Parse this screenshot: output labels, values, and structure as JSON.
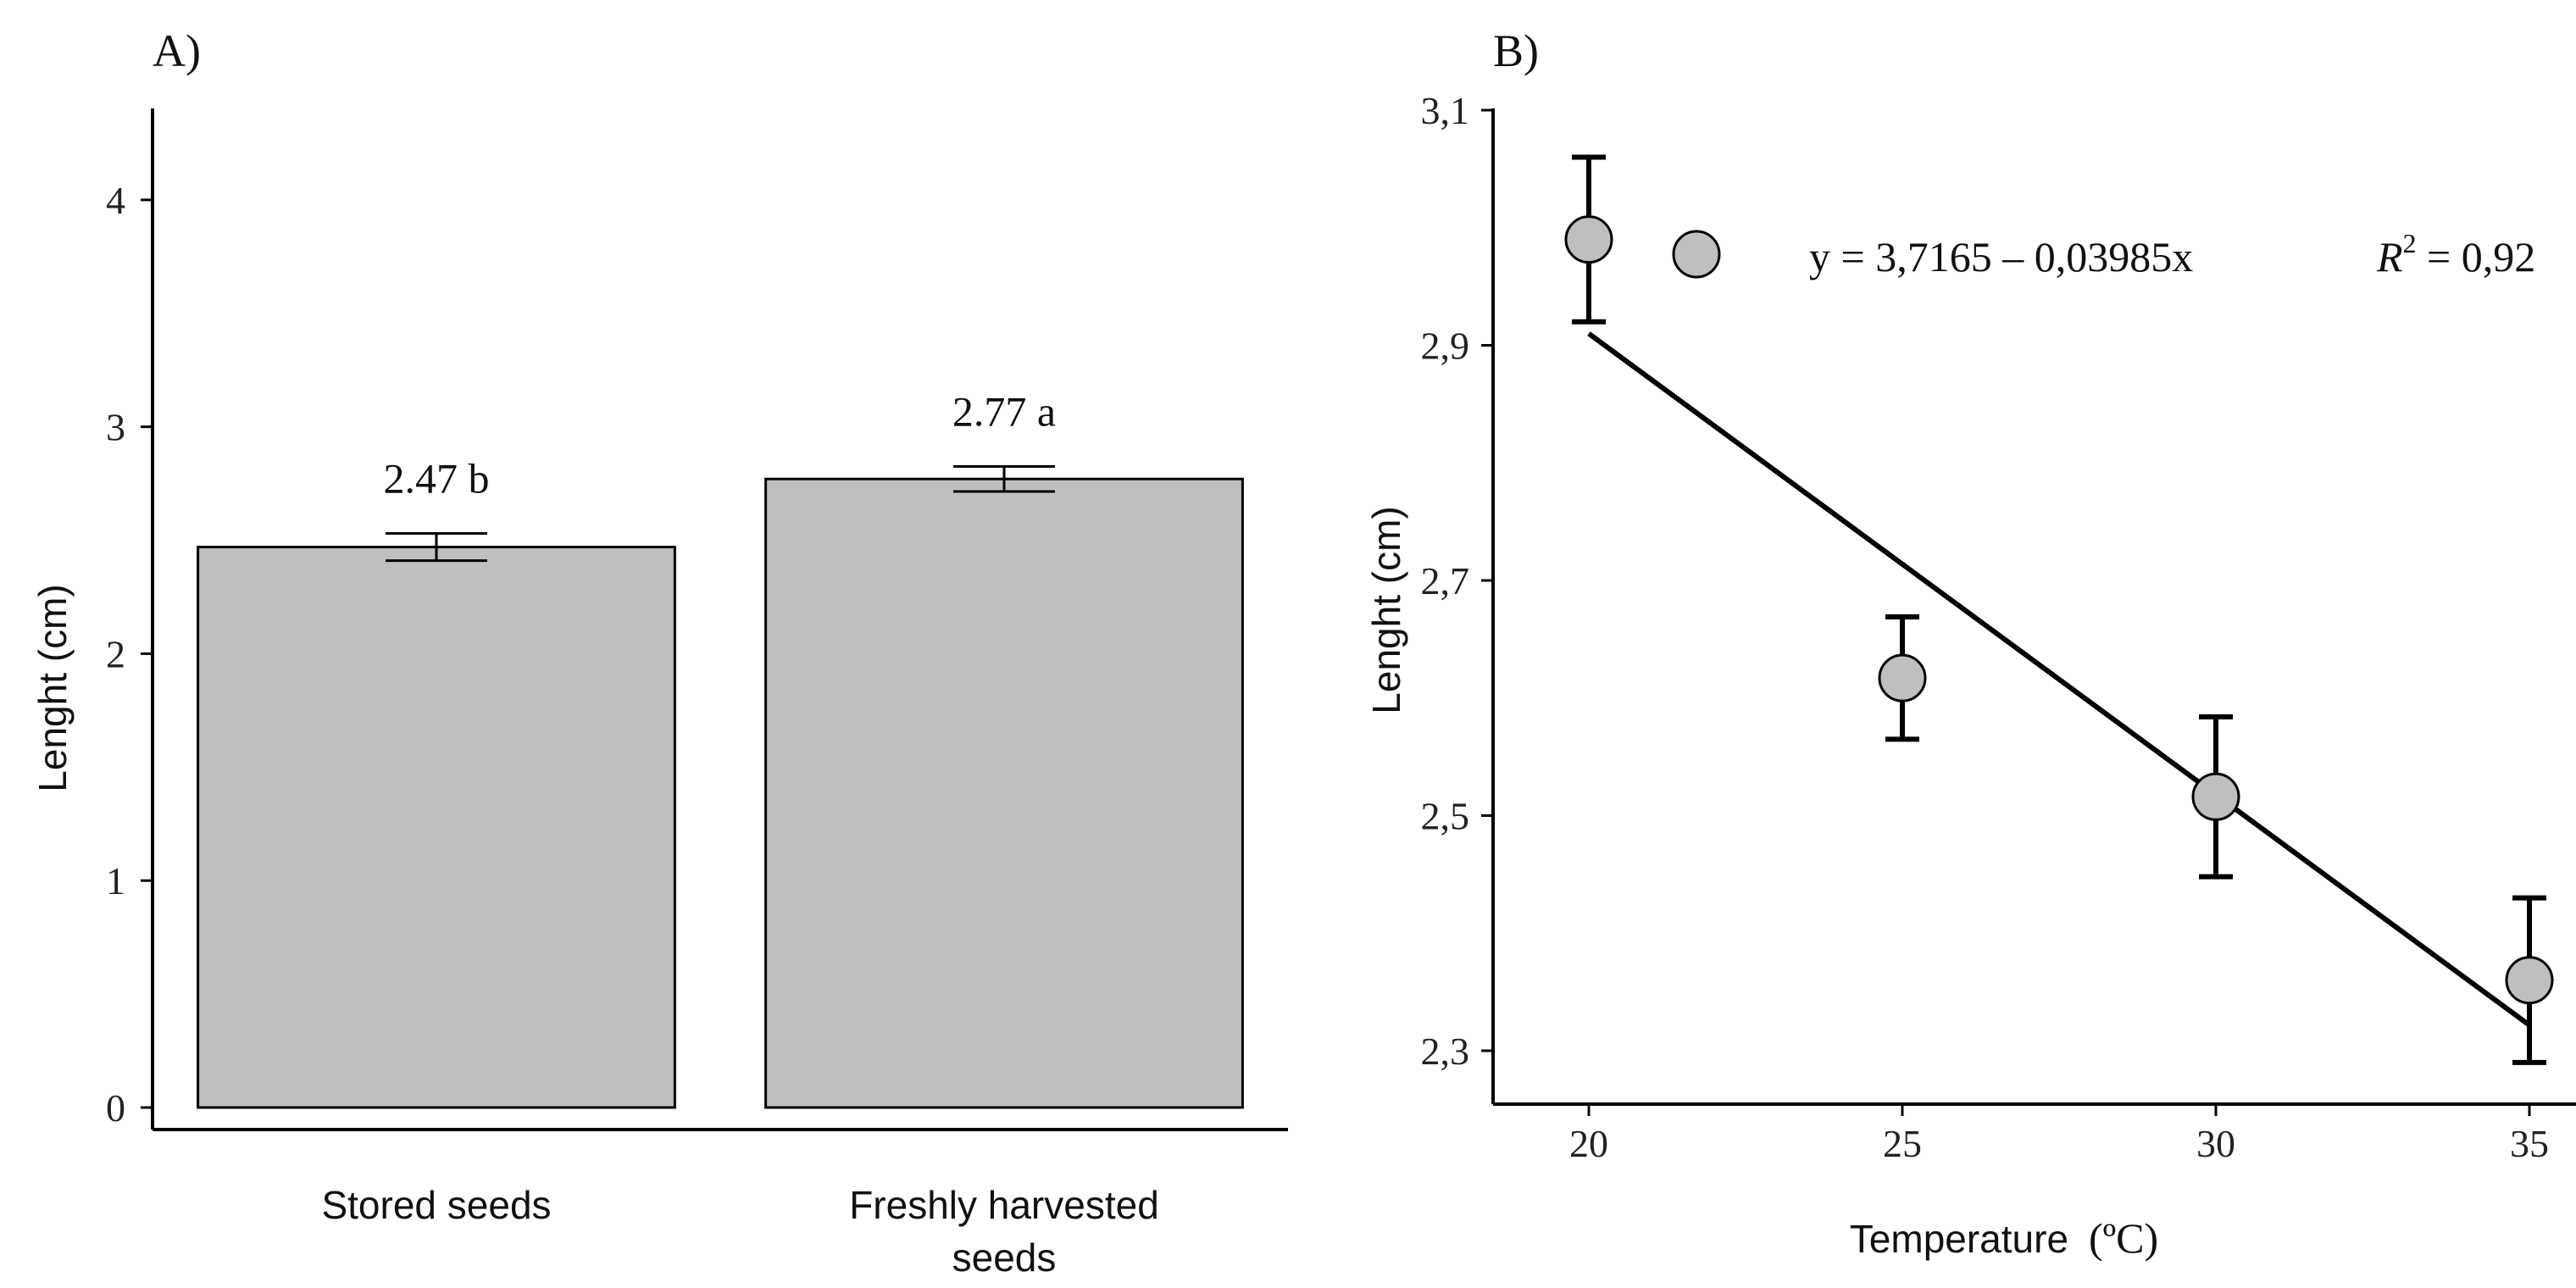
{
  "chart_data": [
    {
      "type": "bar",
      "panel_label": "A)",
      "title": "",
      "xlabel": "",
      "ylabel": "Lenght (cm)",
      "ylim": [
        0,
        4.5
      ],
      "yticks": [
        "0",
        "1",
        "2",
        "3",
        "4"
      ],
      "ytick_values": [
        0,
        1,
        2,
        3,
        4
      ],
      "categories": [
        {
          "line1": "Stored seeds",
          "line2": ""
        },
        {
          "line1": "Freshly harvested",
          "line2": "seeds"
        }
      ],
      "values": [
        2.47,
        2.77
      ],
      "errors": [
        0.06,
        0.055
      ],
      "data_labels": [
        "2.47 b",
        "2.77 a"
      ],
      "bar_color": "#bfbfbf"
    },
    {
      "type": "scatter",
      "panel_label": "B)",
      "title": "",
      "xlabel": "Temperature",
      "xlabel_unit": "(ºC)",
      "ylabel": "Lenght (cm)",
      "xlim": [
        18.7,
        36.2
      ],
      "ylim": [
        2.25,
        3.1
      ],
      "xticks": [
        "20",
        "25",
        "30",
        "35"
      ],
      "xtick_values": [
        20,
        25,
        30,
        35
      ],
      "yticks": [
        "2,3",
        "2,5",
        "2,7",
        "2,9",
        "3,1"
      ],
      "ytick_values": [
        2.3,
        2.5,
        2.7,
        2.9,
        3.1
      ],
      "x": [
        20,
        25,
        30,
        35
      ],
      "y": [
        2.99,
        2.617,
        2.516,
        2.36
      ],
      "errors": [
        0.07,
        0.052,
        0.068,
        0.07
      ],
      "fit": {
        "intercept": 3.7165,
        "slope": -0.03985,
        "x_range": [
          20,
          35
        ]
      },
      "legend": {
        "equation": "y = 3,7165 – 0,03985x",
        "r2_label": "R",
        "r2_sup": "2",
        "r2_value": " = 0,92",
        "placement": "top-right"
      },
      "marker_color": "#bfbfbf"
    }
  ]
}
